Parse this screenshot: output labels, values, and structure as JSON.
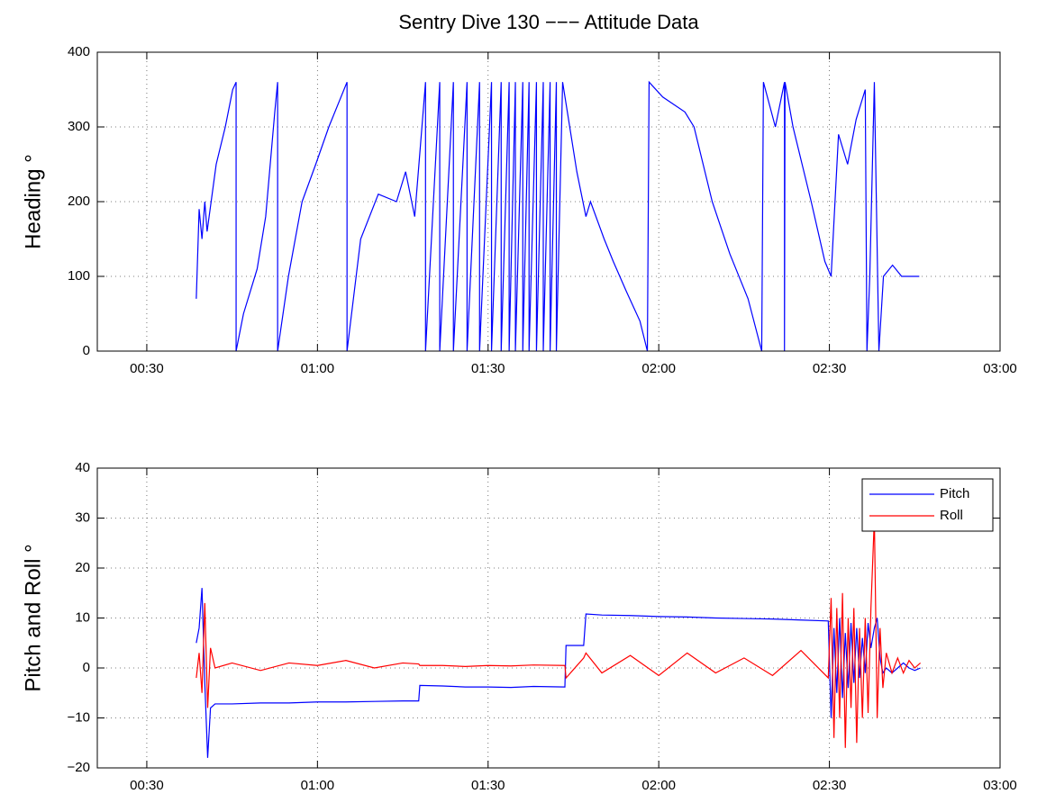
{
  "chart_data": [
    {
      "type": "line",
      "title": "Sentry Dive 130 −−− Attitude Data",
      "ylabel": "Heading °",
      "grid": true,
      "xlim": [
        21.3,
        180
      ],
      "xticks": [
        {
          "value": 30,
          "label": "00:30"
        },
        {
          "value": 60,
          "label": "01:00"
        },
        {
          "value": 90,
          "label": "01:30"
        },
        {
          "value": 120,
          "label": "02:00"
        },
        {
          "value": 150,
          "label": "02:30"
        },
        {
          "value": 180,
          "label": "03:00"
        }
      ],
      "ylim": [
        0,
        400
      ],
      "yticks": [
        0,
        100,
        200,
        300,
        400
      ],
      "x": [
        38.7,
        39.2,
        39.7,
        40.2,
        40.6,
        42.2,
        43.8,
        45.1,
        45.7,
        45.7,
        47,
        49.4,
        50.9,
        52.5,
        53,
        53,
        54.9,
        57.3,
        59.7,
        62,
        65.2,
        65.2,
        67.6,
        70.7,
        73.9,
        75.5,
        77.1,
        79,
        79,
        81.5,
        81.5,
        83.9,
        83.9,
        86.3,
        86.3,
        88.5,
        88.5,
        90.6,
        90.6,
        92.3,
        92.3,
        93.7,
        93.7,
        94.8,
        94.8,
        96.1,
        96.1,
        97.2,
        97.2,
        98.5,
        98.5,
        99.7,
        99.7,
        100.9,
        100.9,
        102,
        102,
        103.1,
        105.6,
        107.2,
        108,
        110.4,
        112,
        114.3,
        116.7,
        118,
        118.3,
        120.7,
        124.6,
        126.2,
        129.4,
        132.5,
        135.7,
        138.1,
        138.4,
        140.5,
        142.1,
        142.1,
        142.2,
        143.6,
        146.8,
        149.2,
        150.3,
        151.6,
        153.2,
        154.7,
        156.3,
        156.6,
        157.1,
        157.9,
        158.7,
        159.5,
        161.1,
        162.7,
        165.8
      ],
      "series": [
        {
          "color": "#0000ff",
          "values": [
            70,
            190,
            150,
            200,
            160,
            250,
            300,
            350,
            360,
            0,
            50,
            110,
            180,
            320,
            360,
            0,
            100,
            200,
            250,
            300,
            360,
            0,
            150,
            210,
            200,
            240,
            180,
            360,
            0,
            360,
            0,
            360,
            0,
            360,
            0,
            360,
            0,
            360,
            0,
            360,
            0,
            360,
            0,
            360,
            0,
            360,
            0,
            360,
            0,
            360,
            0,
            360,
            0,
            360,
            0,
            360,
            0,
            360,
            240,
            180,
            200,
            150,
            120,
            80,
            40,
            0,
            360,
            340,
            320,
            300,
            200,
            130,
            70,
            0,
            360,
            300,
            360,
            0,
            360,
            300,
            200,
            120,
            100,
            290,
            250,
            310,
            350,
            0,
            100,
            360,
            0,
            100,
            115,
            100,
            100
          ]
        }
      ]
    },
    {
      "type": "line",
      "ylabel": "Pitch and Roll °",
      "grid": true,
      "legend": "northeast",
      "xlim": [
        21.3,
        180
      ],
      "xticks": [
        {
          "value": 30,
          "label": "00:30"
        },
        {
          "value": 60,
          "label": "01:00"
        },
        {
          "value": 90,
          "label": "01:30"
        },
        {
          "value": 120,
          "label": "02:00"
        },
        {
          "value": 150,
          "label": "02:30"
        },
        {
          "value": 180,
          "label": "03:00"
        }
      ],
      "ylim": [
        -20,
        40
      ],
      "yticks": [
        {
          "value": -20,
          "label": "−20"
        },
        {
          "value": -10,
          "label": "−10"
        },
        0,
        10,
        20,
        30,
        40
      ],
      "x": [
        38.7,
        39.2,
        39.7,
        40.2,
        40.7,
        41.2,
        42,
        45,
        50,
        55,
        60,
        65,
        70,
        75,
        77.8,
        78,
        82,
        86,
        90,
        94,
        98,
        103.5,
        103.7,
        106.8,
        107.2,
        110,
        115,
        120,
        125,
        130,
        135,
        140,
        145,
        149.8,
        150.3,
        150.8,
        151.3,
        151.8,
        152.3,
        152.8,
        153.3,
        153.8,
        154.3,
        154.8,
        155.3,
        155.8,
        156.3,
        156.8,
        157.3,
        157.9,
        158.4,
        158.9,
        159.4,
        160,
        161,
        162,
        163,
        164,
        165,
        166
      ],
      "series": [
        {
          "name": "Pitch",
          "color": "#0000ff",
          "values": [
            5,
            8,
            16,
            -3,
            -18,
            -8,
            -7.2,
            -7.2,
            -7,
            -7,
            -6.8,
            -6.8,
            -6.7,
            -6.6,
            -6.6,
            -3.5,
            -3.6,
            -3.8,
            -3.8,
            -3.9,
            -3.7,
            -3.8,
            4.5,
            4.5,
            10.8,
            10.6,
            10.5,
            10.3,
            10.2,
            10,
            9.9,
            9.8,
            9.6,
            9.4,
            -10,
            8,
            -5,
            10,
            -6,
            7,
            -4,
            9,
            -3,
            8,
            -2,
            6,
            -1,
            9,
            4,
            8,
            10,
            2,
            -1,
            0,
            -1,
            0,
            1,
            0,
            -0.5,
            0
          ]
        },
        {
          "name": "Roll",
          "color": "#ff0000",
          "values": [
            -2,
            3,
            -5,
            13,
            -8,
            4,
            0,
            1,
            -0.5,
            1,
            0.5,
            1.5,
            0,
            1,
            0.8,
            0.5,
            0.5,
            0.3,
            0.5,
            0.4,
            0.6,
            0.5,
            -2,
            2,
            3,
            -1,
            2.5,
            -1.5,
            3,
            -1,
            2,
            -1.5,
            3.5,
            -2,
            14,
            -14,
            12,
            -10,
            15,
            -16,
            10,
            -8,
            12,
            -15,
            8,
            -10,
            10,
            -9,
            12,
            30,
            -10,
            8,
            -4,
            3,
            -1,
            2,
            -1,
            1.5,
            0,
            1
          ]
        }
      ]
    }
  ]
}
